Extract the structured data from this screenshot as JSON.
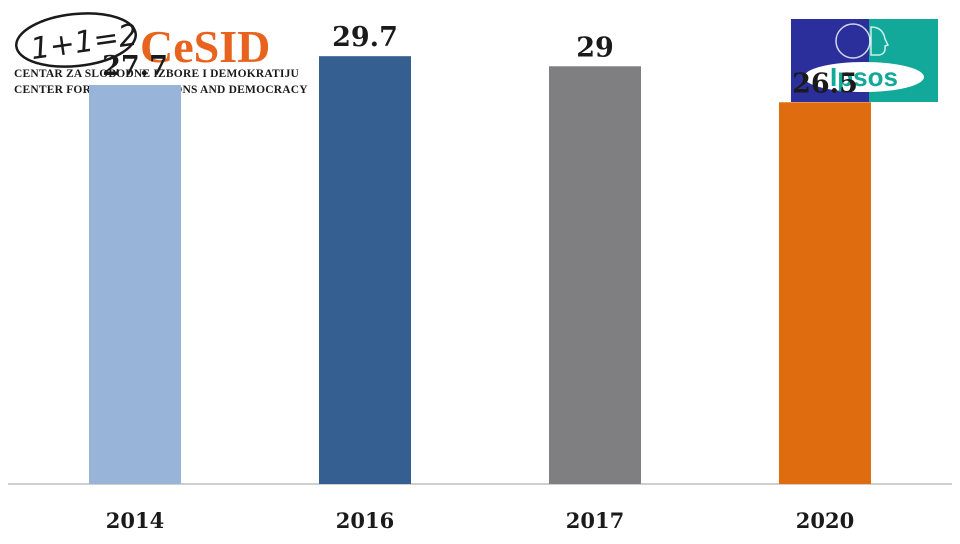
{
  "logos": {
    "cesid": {
      "formula": "1+1=2",
      "name": "CeSID",
      "line1": "CENTAR ZA SLOBODNE IZBORE I DEMOKRATIJU",
      "line2": "CENTER FOR FREE ELECTIONS AND DEMOCRACY",
      "color": "#e8641e"
    },
    "ipsos": {
      "name": "Ipsos",
      "blue": "#2b2f9c",
      "teal": "#12a89a"
    }
  },
  "chart_data": {
    "type": "bar",
    "categories": [
      "2014",
      "2016",
      "2017",
      "2020"
    ],
    "values": [
      27.7,
      29.7,
      29,
      26.5
    ],
    "value_labels": [
      "27.7",
      "29.7",
      "29",
      "26.5"
    ],
    "colors": [
      "#98b4d8",
      "#365f91",
      "#7f7e80",
      "#e06c10"
    ],
    "title": "",
    "xlabel": "",
    "ylabel": "",
    "ylim": [
      0,
      33.6
    ],
    "grid": false,
    "legend": "none"
  }
}
